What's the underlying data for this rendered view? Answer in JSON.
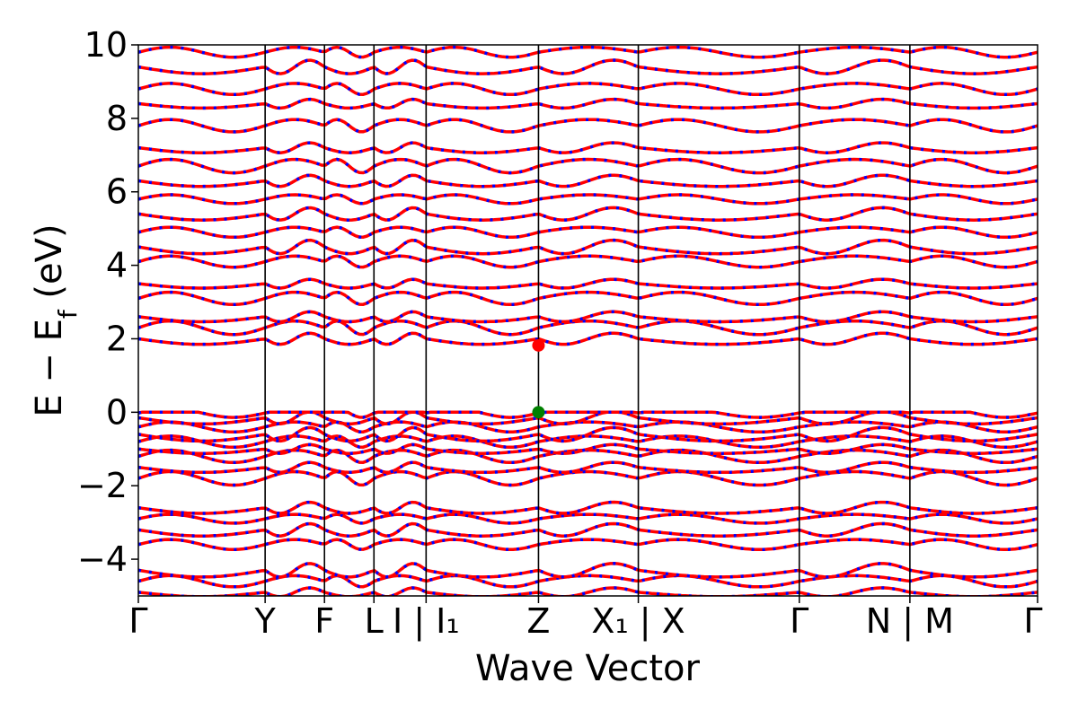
{
  "chart_data": {
    "type": "line",
    "title": "",
    "xlabel": "Wave Vector",
    "ylabel": "E − E_f (eV)",
    "ylim": [
      -5,
      10
    ],
    "yticks": [
      -4,
      -2,
      0,
      2,
      4,
      6,
      8,
      10
    ],
    "ytick_labels": [
      "−4",
      "−2",
      "0",
      "2",
      "4",
      "6",
      "8",
      "10"
    ],
    "kpoints": [
      {
        "label": "Γ",
        "x": 0.0
      },
      {
        "label": "Y",
        "x": 0.141
      },
      {
        "label": "F",
        "x": 0.207
      },
      {
        "label": "L",
        "x": 0.262
      },
      {
        "label": "I | I₁",
        "x": 0.32
      },
      {
        "label": "Z",
        "x": 0.445
      },
      {
        "label": "X₁ | X",
        "x": 0.556
      },
      {
        "label": "Γ",
        "x": 0.735
      },
      {
        "label": "N | M",
        "x": 0.858
      },
      {
        "label": "Γ",
        "x": 1.0
      }
    ],
    "series": [
      {
        "color": "#ff0000",
        "style": "solid"
      },
      {
        "color": "#0000ff",
        "style": "dashed"
      }
    ],
    "band_energies_at_gamma": [
      -4.9,
      -4.6,
      -4.3,
      -3.6,
      -3.2,
      -2.9,
      -2.6,
      -1.8,
      -1.5,
      -1.2,
      -1.0,
      -0.8,
      -0.6,
      -0.4,
      -0.15,
      -0.02,
      2.0,
      2.3,
      2.6,
      3.1,
      3.5,
      4.1,
      4.5,
      4.9,
      5.4,
      5.8,
      6.3,
      6.7,
      7.2,
      7.8,
      8.4,
      8.8,
      9.4,
      9.8
    ],
    "markers": [
      {
        "name": "CBM",
        "x": 0.445,
        "y": 1.82,
        "color": "#ff0000"
      },
      {
        "name": "VBM",
        "x": 0.445,
        "y": 0.0,
        "color": "#008000"
      }
    ],
    "grid": false
  }
}
